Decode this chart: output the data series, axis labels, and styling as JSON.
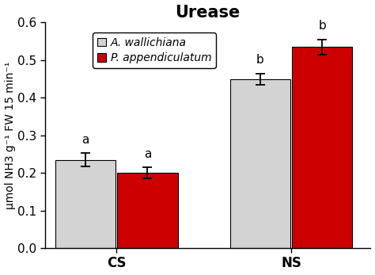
{
  "title": "Urease",
  "groups": [
    "CS",
    "NS"
  ],
  "series": [
    "A. wallichiana",
    "P. appendiculatum"
  ],
  "values": [
    [
      0.235,
      0.2
    ],
    [
      0.45,
      0.535
    ]
  ],
  "errors": [
    [
      0.018,
      0.015
    ],
    [
      0.015,
      0.02
    ]
  ],
  "bar_colors": [
    "#d3d3d3",
    "#cc0000"
  ],
  "bar_edgecolor": "#000000",
  "ylabel": "μmol NH3 g⁻¹ FW 15 min⁻¹",
  "ylim": [
    0,
    0.6
  ],
  "yticks": [
    0,
    0.1,
    0.2,
    0.3,
    0.4,
    0.5,
    0.6
  ],
  "sig_labels": [
    [
      "a",
      "a"
    ],
    [
      "b",
      "b"
    ]
  ],
  "title_fontsize": 15,
  "axis_fontsize": 10,
  "tick_fontsize": 11,
  "legend_fontsize": 10,
  "bar_width": 0.38,
  "background_color": "#ffffff"
}
